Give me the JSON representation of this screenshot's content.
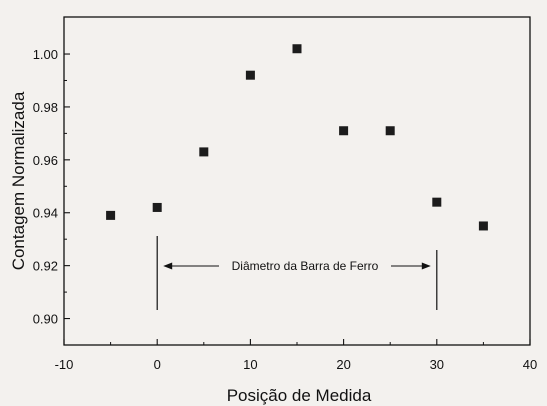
{
  "chart_data": {
    "type": "scatter",
    "title": "",
    "xlabel": "Posição de Medida",
    "ylabel": "Contagem Normalizada",
    "xlim": [
      -10,
      40
    ],
    "ylim": [
      0.89,
      1.014
    ],
    "xticks": [
      -10,
      0,
      10,
      20,
      30,
      40
    ],
    "yticks": [
      0.9,
      0.92,
      0.94,
      0.96,
      0.98,
      1.0
    ],
    "xtick_labels": [
      "-10",
      "0",
      "10",
      "20",
      "30",
      "40"
    ],
    "ytick_labels": [
      "0.90",
      "0.92",
      "0.94",
      "0.96",
      "0.98",
      "1.00"
    ],
    "grid": false,
    "marker": "square",
    "marker_color": "#1c1c1c",
    "series": [
      {
        "x": [
          -5,
          0,
          5,
          10,
          15,
          20,
          25,
          30,
          35
        ],
        "y": [
          0.939,
          0.942,
          0.963,
          0.992,
          1.002,
          0.971,
          0.971,
          0.944,
          0.935
        ]
      }
    ],
    "annotation": {
      "text": "Diâmetro da Barra de Ferro",
      "x_start": 0,
      "x_end": 30
    }
  }
}
